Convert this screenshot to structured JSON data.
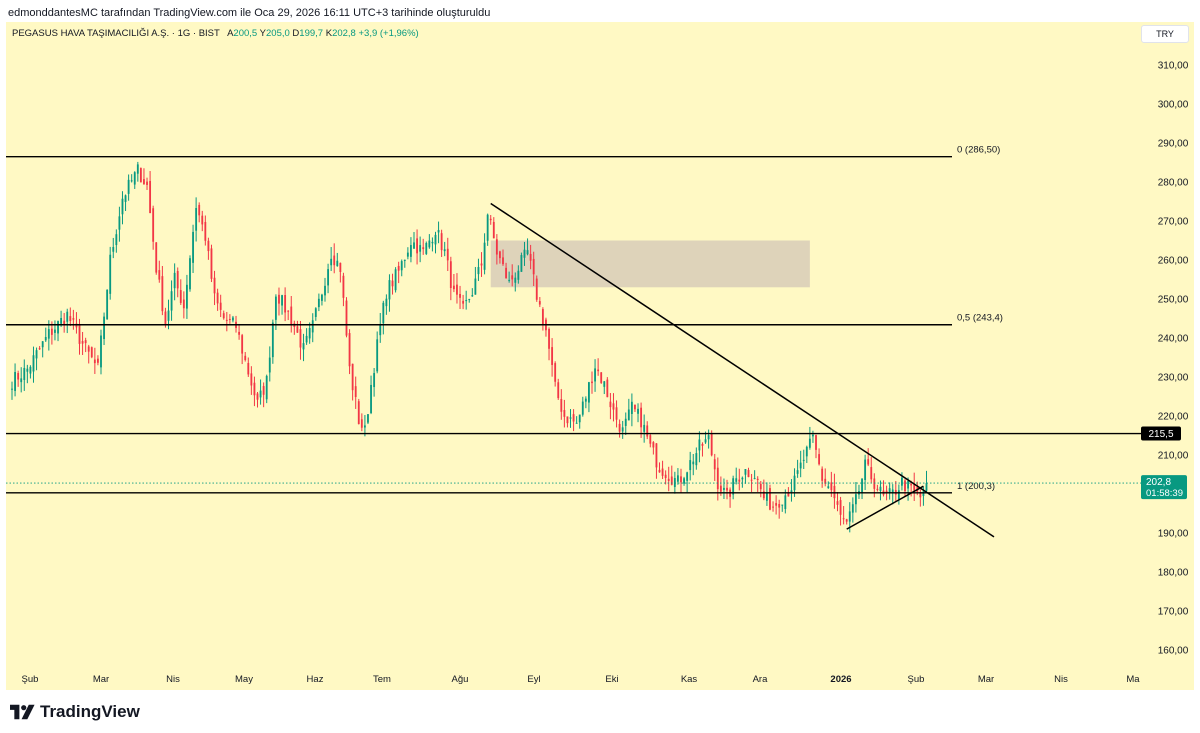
{
  "caption": "edmonddantesMC tarafından TradingView.com ile Oca 29, 2026 16:11 UTC+3 tarihinde oluşturuldu",
  "legend": {
    "symbol": "PEGASUS HAVA TAŞIMACILIĞI A.Ş. · 1G · BIST",
    "o_label": "A",
    "o_value": "200,5",
    "h_label": "Y",
    "h_value": "205,0",
    "l_label": "D",
    "l_value": "199,7",
    "c_label": "K",
    "c_value": "202,8",
    "change": "+3,9 (+1,96%)"
  },
  "currency": "TRY",
  "footer": {
    "brand": "TradingView",
    "icon": "tradingview-logo-icon"
  },
  "colors": {
    "background": "#fff9c4",
    "up": "#089981",
    "down": "#f23645",
    "zone": "#d8cdb8"
  },
  "chart_data": {
    "type": "candlestick",
    "price_axis": {
      "min": 155,
      "max": 318,
      "ticks": [
        "310,00",
        "300,00",
        "290,00",
        "280,00",
        "270,00",
        "260,00",
        "250,00",
        "240,00",
        "230,00",
        "220,00",
        "210,00",
        "190,00",
        "180,00",
        "170,00",
        "160,00"
      ],
      "tick_values": [
        310,
        300,
        290,
        280,
        270,
        260,
        250,
        240,
        230,
        220,
        210,
        190,
        180,
        170,
        160
      ]
    },
    "time_axis": {
      "labels": [
        {
          "text": "Şub",
          "bold": false
        },
        {
          "text": "Mar",
          "bold": false
        },
        {
          "text": "Nis",
          "bold": false
        },
        {
          "text": "May",
          "bold": false
        },
        {
          "text": "Haz",
          "bold": false
        },
        {
          "text": "Tem",
          "bold": false
        },
        {
          "text": "Ağu",
          "bold": false
        },
        {
          "text": "Eyl",
          "bold": false
        },
        {
          "text": "Eki",
          "bold": false
        },
        {
          "text": "Kas",
          "bold": false
        },
        {
          "text": "Ara",
          "bold": false
        },
        {
          "text": "2026",
          "bold": true
        },
        {
          "text": "Şub",
          "bold": false
        },
        {
          "text": "Mar",
          "bold": false
        },
        {
          "text": "Nis",
          "bold": false
        },
        {
          "text": "Ma",
          "bold": false
        }
      ]
    },
    "horizontal_lines": [
      {
        "price": 286.5,
        "label": "0 (286,50)"
      },
      {
        "price": 243.4,
        "label": "0,5 (243,4)"
      },
      {
        "price": 215.5,
        "label": "",
        "axis_badge": "215,5"
      },
      {
        "price": 200.3,
        "label": "1 (200,3)"
      }
    ],
    "current_price": {
      "price": 202.8,
      "label": "202,8",
      "countdown": "01:58:39"
    },
    "supply_zone": {
      "price_top": 265,
      "price_bottom": 253,
      "bar_start": 156,
      "bar_end": 260
    },
    "trendlines": [
      {
        "from_bar": 156,
        "from_price": 274.5,
        "to_bar": 320,
        "to_price": 189
      },
      {
        "from_bar": 272,
        "from_price": 191,
        "to_bar": 297,
        "to_price": 202
      }
    ],
    "bar_count": 320,
    "anchors": [
      [
        0,
        229
      ],
      [
        5,
        232
      ],
      [
        12,
        241
      ],
      [
        18,
        246
      ],
      [
        24,
        237
      ],
      [
        28,
        232
      ],
      [
        32,
        260
      ],
      [
        36,
        276
      ],
      [
        41,
        283
      ],
      [
        44,
        279
      ],
      [
        47,
        258
      ],
      [
        50,
        244
      ],
      [
        53,
        255
      ],
      [
        56,
        248
      ],
      [
        60,
        274
      ],
      [
        63,
        266
      ],
      [
        66,
        250
      ],
      [
        69,
        245
      ],
      [
        73,
        243
      ],
      [
        76,
        234
      ],
      [
        80,
        223
      ],
      [
        83,
        229
      ],
      [
        86,
        252
      ],
      [
        88,
        249
      ],
      [
        91,
        245
      ],
      [
        95,
        237
      ],
      [
        98,
        243
      ],
      [
        101,
        252
      ],
      [
        104,
        262
      ],
      [
        107,
        258
      ],
      [
        110,
        232
      ],
      [
        113,
        219
      ],
      [
        115,
        216
      ],
      [
        117,
        228
      ],
      [
        119,
        238
      ],
      [
        122,
        252
      ],
      [
        126,
        257
      ],
      [
        130,
        265
      ],
      [
        134,
        262
      ],
      [
        138,
        268
      ],
      [
        141,
        262
      ],
      [
        144,
        251
      ],
      [
        147,
        247
      ],
      [
        150,
        252
      ],
      [
        153,
        259
      ],
      [
        155,
        272
      ],
      [
        158,
        262
      ],
      [
        162,
        254
      ],
      [
        165,
        258
      ],
      [
        168,
        262
      ],
      [
        171,
        251
      ],
      [
        174,
        242
      ],
      [
        177,
        227
      ],
      [
        180,
        220
      ],
      [
        184,
        218
      ],
      [
        187,
        225
      ],
      [
        190,
        233
      ],
      [
        193,
        228
      ],
      [
        196,
        221
      ],
      [
        199,
        216
      ],
      [
        202,
        222
      ],
      [
        205,
        219
      ],
      [
        208,
        212
      ],
      [
        211,
        207
      ],
      [
        214,
        205
      ],
      [
        217,
        203
      ],
      [
        221,
        208
      ],
      [
        224,
        212
      ],
      [
        227,
        214
      ],
      [
        230,
        203
      ],
      [
        233,
        199
      ],
      [
        236,
        204
      ],
      [
        239,
        206
      ],
      [
        242,
        205
      ],
      [
        245,
        199
      ],
      [
        248,
        197
      ],
      [
        252,
        200
      ],
      [
        255,
        203
      ],
      [
        258,
        209
      ],
      [
        261,
        214
      ],
      [
        264,
        204
      ],
      [
        267,
        201
      ],
      [
        270,
        194
      ],
      [
        272,
        192
      ],
      [
        275,
        198
      ],
      [
        278,
        207
      ],
      [
        281,
        203
      ],
      [
        284,
        199
      ],
      [
        287,
        200
      ],
      [
        290,
        203
      ],
      [
        293,
        201
      ],
      [
        296,
        199
      ],
      [
        298,
        202.8
      ]
    ]
  }
}
